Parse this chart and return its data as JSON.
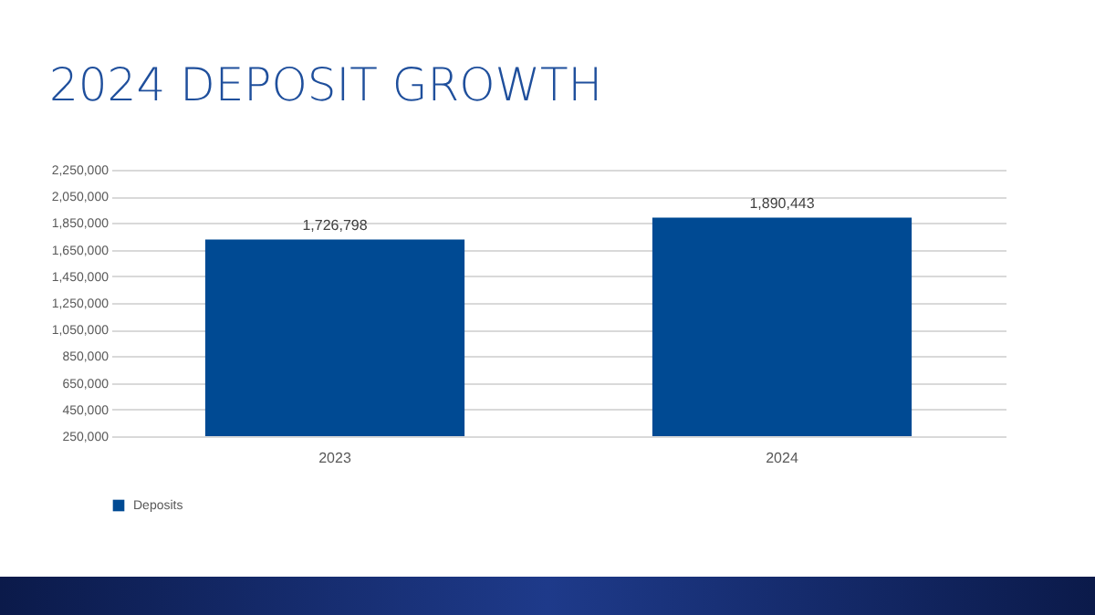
{
  "chart_data": {
    "type": "bar",
    "title": "2024 DEPOSIT GROWTH",
    "categories": [
      "2023",
      "2024"
    ],
    "series": [
      {
        "name": "Deposits",
        "color": "#004a93",
        "values": [
          1726798,
          1890443
        ]
      }
    ],
    "ylim": [
      250000,
      2250000
    ],
    "yticks": [
      {
        "value": 250000,
        "label": "250,000"
      },
      {
        "value": 450000,
        "label": "450,000"
      },
      {
        "value": 650000,
        "label": "650,000"
      },
      {
        "value": 850000,
        "label": "850,000"
      },
      {
        "value": 1050000,
        "label": "1,050,000"
      },
      {
        "value": 1250000,
        "label": "1,250,000"
      },
      {
        "value": 1450000,
        "label": "1,450,000"
      },
      {
        "value": 1650000,
        "label": "1,650,000"
      },
      {
        "value": 1850000,
        "label": "1,850,000"
      },
      {
        "value": 2050000,
        "label": "2,050,000"
      },
      {
        "value": 2250000,
        "label": "2,250,000"
      }
    ],
    "grid": "y",
    "legend": "bottom",
    "value_labels": [
      "1,726,798",
      "1,890,443"
    ]
  }
}
